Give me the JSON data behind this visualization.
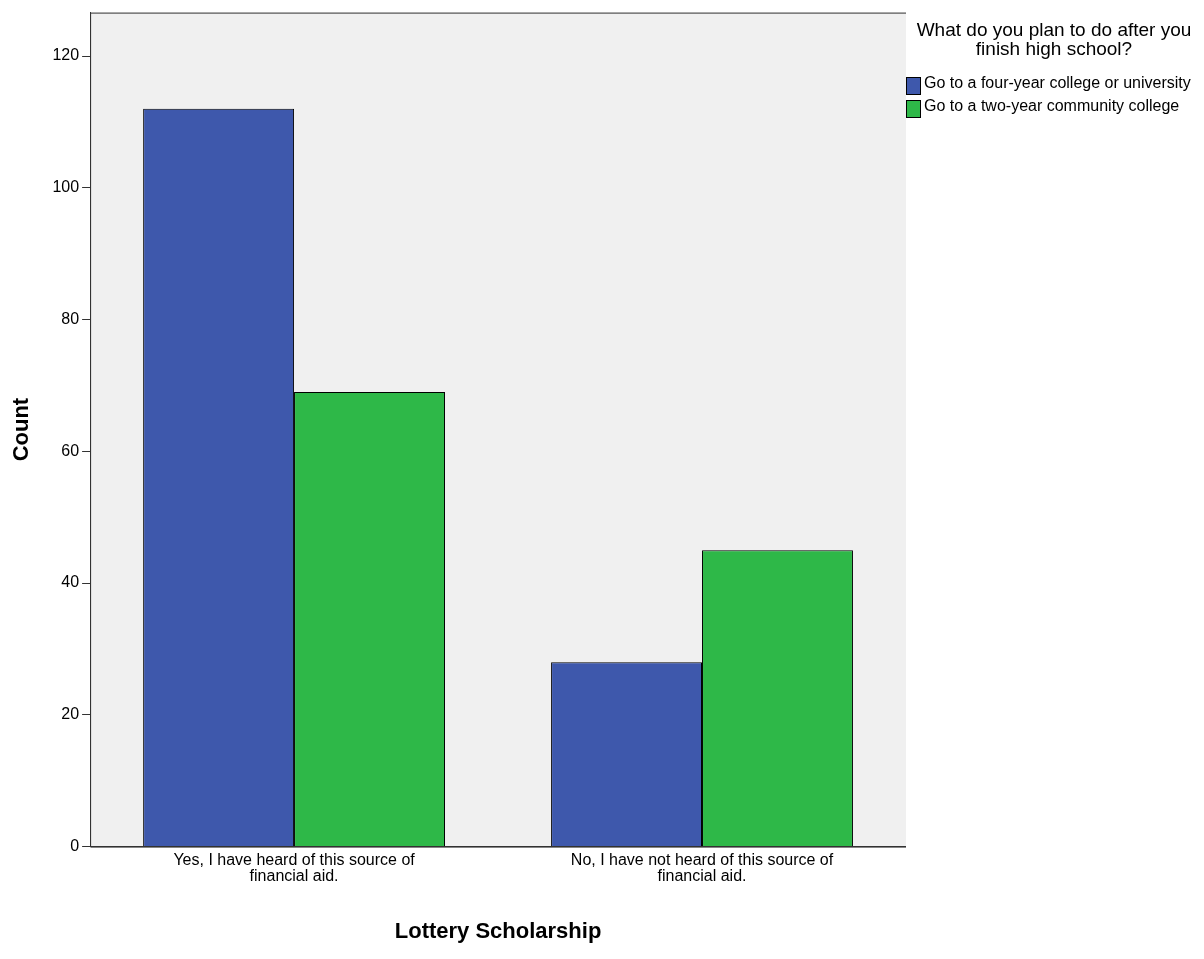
{
  "chart_data": {
    "type": "bar",
    "xlabel": "Lottery Scholarship",
    "ylabel": "Count",
    "legend_title": "What do you plan to do after you finish high school?",
    "categories": [
      "Yes, I have heard of this source of financial aid.",
      "No, I have not heard of this source of financial aid."
    ],
    "series": [
      {
        "name": "Go to a four-year college or university",
        "color": "#3e58ac",
        "values": [
          112,
          28
        ]
      },
      {
        "name": "Go to a two-year community college",
        "color": "#2eb848",
        "values": [
          69,
          45
        ]
      }
    ],
    "ylim": [
      0,
      126.6
    ],
    "yticks": [
      0,
      20,
      40,
      60,
      80,
      100,
      120
    ],
    "grid": false,
    "legend": "top right"
  }
}
